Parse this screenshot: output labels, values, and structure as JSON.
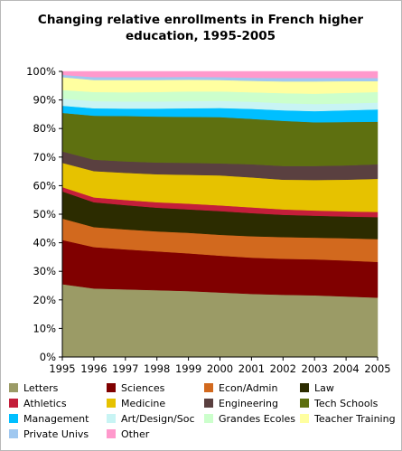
{
  "chart_data": {
    "type": "area",
    "stacked": true,
    "normalized": true,
    "title_lines": [
      "Changing relative enrollments in French higher",
      "education, 1995-2005"
    ],
    "xlabel": "",
    "ylabel": "",
    "x": [
      "1995",
      "1996",
      "1997",
      "1998",
      "1999",
      "2000",
      "2001",
      "2002",
      "2003",
      "2004",
      "2005"
    ],
    "ylim": [
      0,
      100
    ],
    "yticks": [
      "0%",
      "10%",
      "20%",
      "30%",
      "40%",
      "50%",
      "60%",
      "70%",
      "80%",
      "90%",
      "100%"
    ],
    "grid": false,
    "legend_position": "bottom",
    "series": [
      {
        "name": "Letters",
        "color": "#9b9b66",
        "values": [
          25.5,
          24,
          23.7,
          23.4,
          23.1,
          22.6,
          22.1,
          21.8,
          21.6,
          21.2,
          20.8
        ]
      },
      {
        "name": "Sciences",
        "color": "#800000",
        "values": [
          15.5,
          14.5,
          14,
          13.6,
          13.2,
          12.9,
          12.7,
          12.6,
          12.6,
          12.6,
          12.5
        ]
      },
      {
        "name": "Econ/Admin",
        "color": "#d2691e",
        "values": [
          7.5,
          7,
          7,
          7,
          7.2,
          7.3,
          7.5,
          7.6,
          7.6,
          7.8,
          8
        ]
      },
      {
        "name": "Law",
        "color": "#2c2c00",
        "values": [
          9.5,
          8.7,
          8.5,
          8.3,
          8.2,
          8.3,
          8.1,
          7.8,
          7.7,
          7.6,
          7.7
        ]
      },
      {
        "name": "Athletics",
        "color": "#c41e3a",
        "values": [
          1.5,
          1.7,
          1.8,
          1.9,
          2,
          2,
          2,
          1.9,
          1.8,
          1.8,
          1.8
        ]
      },
      {
        "name": "Medicine",
        "color": "#e6c200",
        "values": [
          8.5,
          9.2,
          9.5,
          9.8,
          10.1,
          10.5,
          10.5,
          10.4,
          10.7,
          11.1,
          11.6
        ]
      },
      {
        "name": "Engineering",
        "color": "#5a4040",
        "values": [
          4,
          4,
          4,
          4.1,
          4.2,
          4.2,
          4.6,
          4.8,
          4.9,
          5,
          5.1
        ]
      },
      {
        "name": "Tech Schools",
        "color": "#5e7010",
        "values": [
          13.5,
          15.4,
          15.9,
          16.1,
          16.1,
          16.2,
          15.9,
          15.8,
          15.3,
          15.2,
          14.9
        ]
      },
      {
        "name": "Management",
        "color": "#00bfff",
        "values": [
          2.5,
          2.6,
          2.6,
          2.8,
          3,
          3.2,
          3.5,
          3.7,
          3.9,
          4.1,
          4.3
        ]
      },
      {
        "name": "Art/Design/Soc",
        "color": "#c8f4f4",
        "values": [
          2.5,
          2.5,
          2.5,
          2.5,
          2.5,
          2.5,
          2.5,
          2.5,
          2.5,
          2.4,
          2.4
        ]
      },
      {
        "name": "Grandes Ecoles",
        "color": "#ccffcc",
        "values": [
          3,
          3.2,
          3.2,
          3.3,
          3.4,
          3.3,
          3.3,
          3.5,
          3.6,
          3.7,
          3.7
        ]
      },
      {
        "name": "Teacher Training",
        "color": "#ffffa0",
        "values": [
          4.5,
          4.2,
          4.3,
          4.2,
          4.1,
          4,
          4,
          4.1,
          4.3,
          4.1,
          3.8
        ]
      },
      {
        "name": "Private Univs",
        "color": "#a0c8f0",
        "values": [
          0.8,
          1,
          1,
          1,
          1,
          1,
          1.1,
          1.2,
          1.2,
          1.1,
          1.1
        ]
      },
      {
        "name": "Other",
        "color": "#ff99cc",
        "values": [
          1.2,
          2,
          2,
          2,
          1.9,
          2,
          2.2,
          2.3,
          2.3,
          2.3,
          2.3
        ]
      }
    ]
  }
}
